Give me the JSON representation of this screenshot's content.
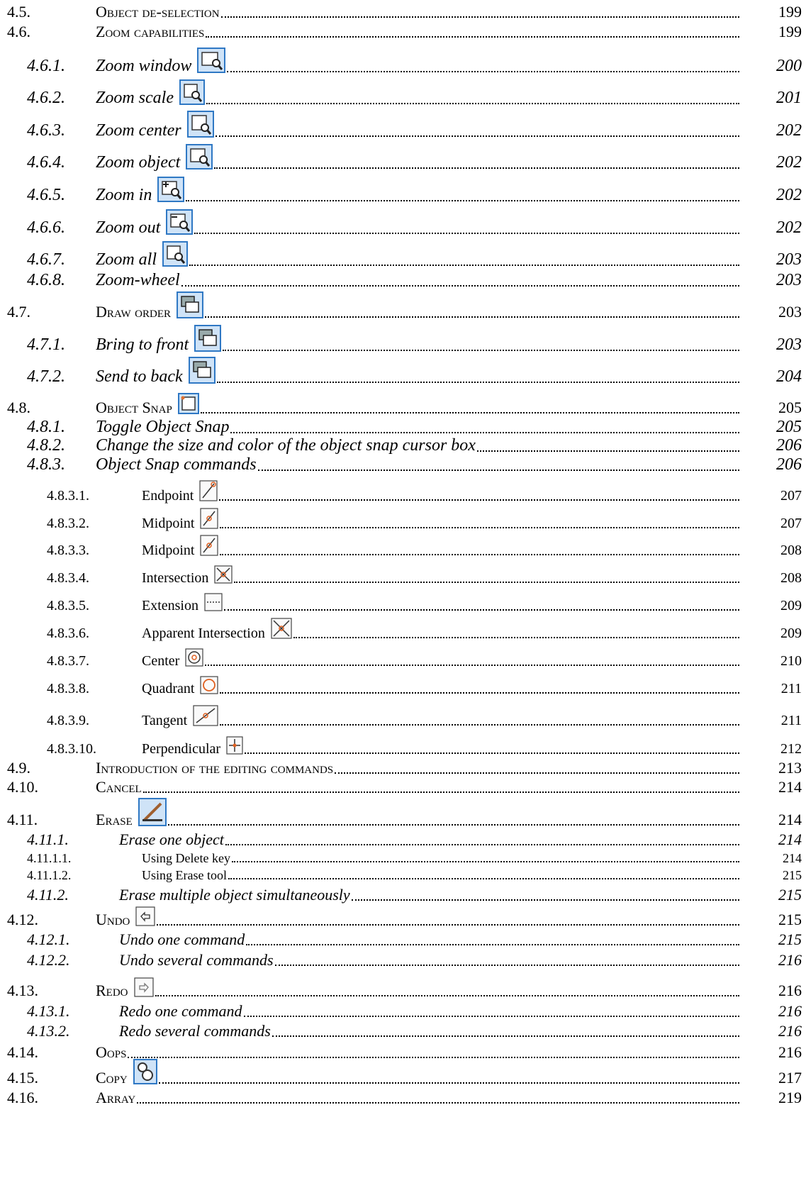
{
  "toc": [
    {
      "number": "4.5.",
      "title": "Object de-selection",
      "page": "199",
      "level": "l1",
      "icon": ""
    },
    {
      "number": "4.6.",
      "title": "Zoom capabilities",
      "page": "199",
      "level": "l1",
      "icon": ""
    },
    {
      "number": "4.6.1.",
      "title": "Zoom window",
      "page": "200",
      "level": "l2",
      "icon": "zoom-window-icon"
    },
    {
      "number": "4.6.2.",
      "title": "Zoom scale",
      "page": "201",
      "level": "l2",
      "icon": "zoom-scale-icon"
    },
    {
      "number": "4.6.3.",
      "title": "Zoom center",
      "page": "202",
      "level": "l2",
      "icon": "zoom-center-icon"
    },
    {
      "number": "4.6.4.",
      "title": "Zoom object",
      "page": "202",
      "level": "l2",
      "icon": "zoom-object-icon"
    },
    {
      "number": "4.6.5.",
      "title": "Zoom in",
      "page": "202",
      "level": "l2",
      "icon": "zoom-in-icon"
    },
    {
      "number": "4.6.6.",
      "title": "Zoom out",
      "page": "202",
      "level": "l2",
      "icon": "zoom-out-icon"
    },
    {
      "number": "4.6.7.",
      "title": "Zoom all",
      "page": "203",
      "level": "l2",
      "icon": "zoom-all-icon"
    },
    {
      "number": "4.6.8.",
      "title": "Zoom-wheel",
      "page": "203",
      "level": "l2",
      "icon": ""
    },
    {
      "number": "4.7.",
      "title": "Draw order",
      "page": "203",
      "level": "l1",
      "icon": "draw-order-icon"
    },
    {
      "number": "4.7.1.",
      "title": "Bring to front",
      "page": "203",
      "level": "l2",
      "icon": "bring-to-front-icon"
    },
    {
      "number": "4.7.2.",
      "title": "Send to back",
      "page": "204",
      "level": "l2",
      "icon": "send-to-back-icon"
    },
    {
      "number": "4.8.",
      "title": "Object Snap",
      "page": "205",
      "level": "l1",
      "icon": "object-snap-icon"
    },
    {
      "number": "4.8.1.",
      "title": "Toggle Object Snap",
      "page": "205",
      "level": "l2",
      "icon": ""
    },
    {
      "number": "4.8.2.",
      "title": "Change the size and color of the object snap cursor box",
      "page": "206",
      "level": "l2",
      "icon": ""
    },
    {
      "number": "4.8.3.",
      "title": "Object Snap commands",
      "page": "206",
      "level": "l2",
      "icon": ""
    },
    {
      "number": "4.8.3.1.",
      "title": "Endpoint",
      "page": "207",
      "level": "l3",
      "icon": "endpoint-snap-icon"
    },
    {
      "number": "4.8.3.2.",
      "title": "Midpoint",
      "page": "207",
      "level": "l3",
      "icon": "midpoint-snap-icon"
    },
    {
      "number": "4.8.3.3.",
      "title": "Midpoint",
      "page": "208",
      "level": "l3",
      "icon": "midpoint-snap-icon"
    },
    {
      "number": "4.8.3.4.",
      "title": "Intersection",
      "page": "208",
      "level": "l3",
      "icon": "intersection-snap-icon"
    },
    {
      "number": "4.8.3.5.",
      "title": "Extension",
      "page": "209",
      "level": "l3",
      "icon": "extension-snap-icon"
    },
    {
      "number": "4.8.3.6.",
      "title": "Apparent Intersection",
      "page": "209",
      "level": "l3",
      "icon": "apparent-intersection-snap-icon"
    },
    {
      "number": "4.8.3.7.",
      "title": "Center",
      "page": "210",
      "level": "l3",
      "icon": "center-snap-icon"
    },
    {
      "number": "4.8.3.8.",
      "title": "Quadrant",
      "page": "211",
      "level": "l3",
      "icon": "quadrant-snap-icon"
    },
    {
      "number": "4.8.3.9.",
      "title": "Tangent",
      "page": "211",
      "level": "l3",
      "icon": "tangent-snap-icon"
    },
    {
      "number": "4.8.3.10.",
      "title": "Perpendicular",
      "page": "212",
      "level": "l3",
      "icon": "perpendicular-snap-icon"
    },
    {
      "number": "4.9.",
      "title": "Introduction of the editing commands",
      "page": "213",
      "level": "l1",
      "icon": ""
    },
    {
      "number": "4.10.",
      "title": "Cancel",
      "page": "214",
      "level": "l1",
      "icon": ""
    },
    {
      "number": "4.11.",
      "title": "Erase",
      "page": "214",
      "level": "l1",
      "icon": "erase-icon"
    },
    {
      "number": "4.11.1.",
      "title": "Erase one object",
      "page": "214",
      "level": "l2n",
      "icon": ""
    },
    {
      "number": "4.11.1.1.",
      "title": "Using Delete key",
      "page": "214",
      "level": "l3n",
      "icon": ""
    },
    {
      "number": "4.11.1.2.",
      "title": "Using Erase tool",
      "page": "215",
      "level": "l3n",
      "icon": ""
    },
    {
      "number": "4.11.2.",
      "title": "Erase multiple object simultaneously",
      "page": "215",
      "level": "l2n",
      "icon": ""
    },
    {
      "number": "4.12.",
      "title": "Undo",
      "page": "215",
      "level": "l1",
      "icon": "undo-icon"
    },
    {
      "number": "4.12.1.",
      "title": "Undo one command",
      "page": "215",
      "level": "l2n",
      "icon": ""
    },
    {
      "number": "4.12.2.",
      "title": "Undo several commands",
      "page": "216",
      "level": "l2n",
      "icon": ""
    },
    {
      "number": "4.13.",
      "title": "Redo",
      "page": "216",
      "level": "l1",
      "icon": "redo-icon"
    },
    {
      "number": "4.13.1.",
      "title": "Redo one command",
      "page": "216",
      "level": "l2n",
      "icon": ""
    },
    {
      "number": "4.13.2.",
      "title": "Redo several commands",
      "page": "216",
      "level": "l2n",
      "icon": ""
    },
    {
      "number": "4.14.",
      "title": "Oops",
      "page": "216",
      "level": "l1",
      "icon": ""
    },
    {
      "number": "4.15.",
      "title": "Copy",
      "page": "217",
      "level": "l1",
      "icon": "copy-icon"
    },
    {
      "number": "4.16.",
      "title": "Array",
      "page": "219",
      "level": "l1",
      "icon": ""
    }
  ]
}
